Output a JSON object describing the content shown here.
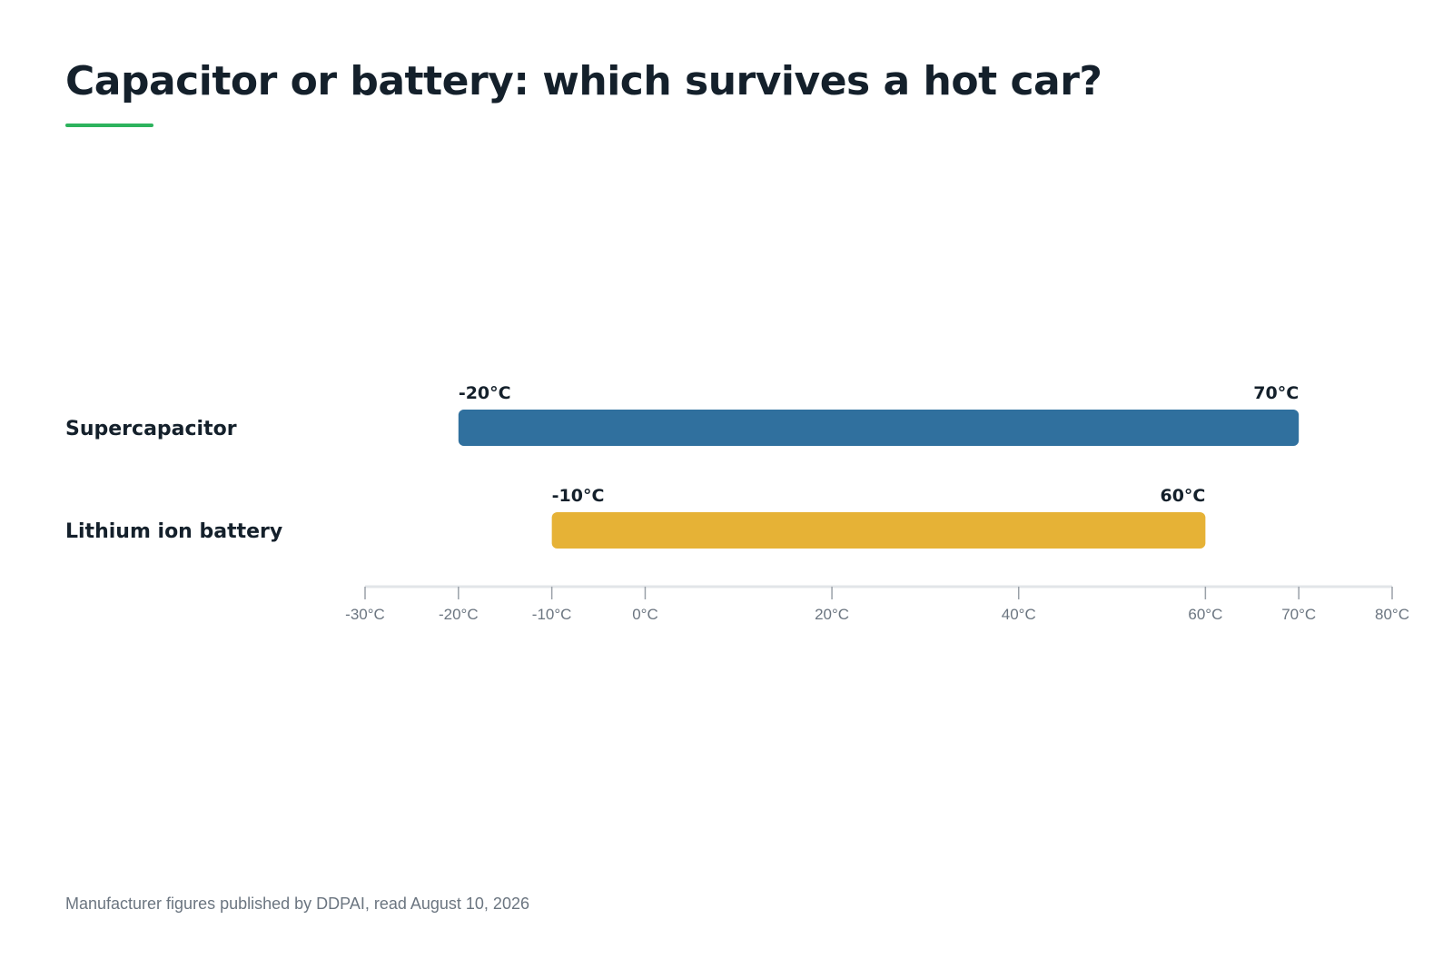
{
  "header": {
    "title": "Capacitor or battery: which survives a hot car?",
    "accent_color": "#2db35d"
  },
  "chart_data": {
    "type": "bar",
    "subtype": "range",
    "orientation": "horizontal",
    "categories": [
      "Supercapacitor",
      "Lithium ion battery"
    ],
    "series": [
      {
        "values": [
          {
            "category": "Supercapacitor",
            "low": -20,
            "high": 70,
            "low_label": "-20°C",
            "high_label": "70°C",
            "color": "#30709e"
          },
          {
            "category": "Lithium ion battery",
            "low": -10,
            "high": 60,
            "low_label": "-10°C",
            "high_label": "60°C",
            "color": "#e6b236"
          }
        ]
      }
    ],
    "xlim": [
      -30,
      80
    ],
    "xticks": [
      {
        "value": -30,
        "label": "-30°C"
      },
      {
        "value": -20,
        "label": "-20°C"
      },
      {
        "value": -10,
        "label": "-10°C"
      },
      {
        "value": 0,
        "label": "0°C"
      },
      {
        "value": 20,
        "label": "20°C"
      },
      {
        "value": 40,
        "label": "40°C"
      },
      {
        "value": 60,
        "label": "60°C"
      },
      {
        "value": 70,
        "label": "70°C"
      },
      {
        "value": 80,
        "label": "80°C"
      }
    ],
    "xlabel": "",
    "ylabel": "",
    "grid": false,
    "legend": "none"
  },
  "footer": {
    "source": "Manufacturer figures published by DDPAI, read August 10, 2026"
  }
}
